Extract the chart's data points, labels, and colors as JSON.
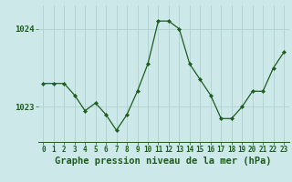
{
  "hours": [
    0,
    1,
    2,
    3,
    4,
    5,
    6,
    7,
    8,
    9,
    10,
    11,
    12,
    13,
    14,
    15,
    16,
    17,
    18,
    19,
    20,
    21,
    22,
    23
  ],
  "pressure": [
    1023.3,
    1023.3,
    1023.3,
    1023.15,
    1022.95,
    1023.05,
    1022.9,
    1022.7,
    1022.9,
    1023.2,
    1023.55,
    1024.1,
    1024.1,
    1024.0,
    1023.55,
    1023.35,
    1023.15,
    1022.85,
    1022.85,
    1023.0,
    1023.2,
    1023.2,
    1023.5,
    1023.7
  ],
  "line_color": "#1e5c1e",
  "marker": "D",
  "marker_size": 2.2,
  "bg_color": "#cce8e8",
  "grid_color": "#b0d0d0",
  "xlabel": "Graphe pression niveau de la mer (hPa)",
  "xlabel_fontsize": 7.5,
  "ytick_labels": [
    "1023",
    "1024"
  ],
  "ytick_values": [
    1023.0,
    1024.0
  ],
  "ylim": [
    1022.55,
    1024.3
  ],
  "xlim": [
    -0.5,
    23.5
  ],
  "tick_color": "#1e5c1e",
  "label_color": "#1e5c1e",
  "xtick_fontsize": 5.5,
  "ytick_fontsize": 6.5,
  "linewidth": 0.9
}
